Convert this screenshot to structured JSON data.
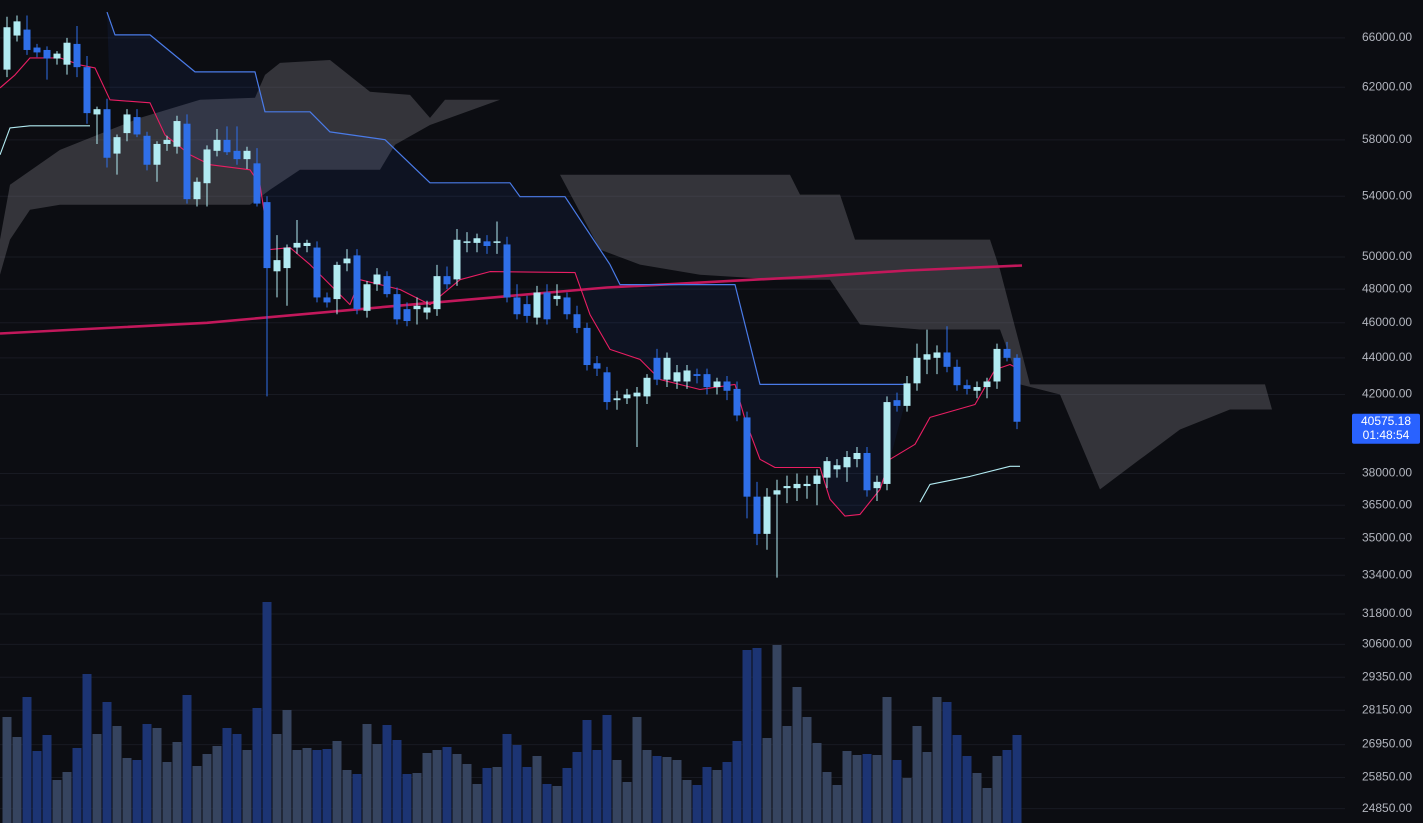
{
  "chart_data": {
    "type": "candlestick",
    "log_scale": true,
    "grid": true,
    "xlim": [
      -0.7,
      133.8
    ],
    "ylim": [
      24400,
      69250
    ],
    "yticks": [
      {
        "value": 66000,
        "label": "66000.00"
      },
      {
        "value": 62000,
        "label": "62000.00"
      },
      {
        "value": 58000,
        "label": "58000.00"
      },
      {
        "value": 54000,
        "label": "54000.00"
      },
      {
        "value": 50000,
        "label": "50000.00"
      },
      {
        "value": 48000,
        "label": "48000.00"
      },
      {
        "value": 46000,
        "label": "46000.00"
      },
      {
        "value": 44000,
        "label": "44000.00"
      },
      {
        "value": 42000,
        "label": "42000.00"
      },
      {
        "value": 38000,
        "label": "38000.00"
      },
      {
        "value": 36500,
        "label": "36500.00"
      },
      {
        "value": 35000,
        "label": "35000.00"
      },
      {
        "value": 33400,
        "label": "33400.00"
      },
      {
        "value": 31800,
        "label": "31800.00"
      },
      {
        "value": 30600,
        "label": "30600.00"
      },
      {
        "value": 29350,
        "label": "29350.00"
      },
      {
        "value": 28150,
        "label": "28150.00"
      },
      {
        "value": 26950,
        "label": "26950.00"
      },
      {
        "value": 25850,
        "label": "25850.00"
      },
      {
        "value": 24850,
        "label": "24850.00"
      }
    ],
    "up_color": "#b2ebf2",
    "down_color": "#2f6fe8",
    "volume_up_color": "#36445f",
    "volume_down_color": "#1c3473",
    "open": [
      63400,
      66200,
      66700,
      65200,
      65000,
      64300,
      63800,
      65500,
      63600,
      59900,
      60300,
      57000,
      58500,
      59700,
      58300,
      56200,
      57700,
      57500,
      59200,
      53800,
      54900,
      57200,
      58000,
      57200,
      56600,
      56300,
      53600,
      49100,
      49300,
      50600,
      50700,
      50600,
      47500,
      47400,
      49600,
      50100,
      46700,
      48300,
      48800,
      47700,
      46800,
      46800,
      46600,
      46800,
      48800,
      48600,
      50900,
      50900,
      51000,
      50900,
      50800,
      47500,
      47100,
      46300,
      47800,
      47400,
      47500,
      46500,
      45700,
      43700,
      43200,
      41700,
      41800,
      41900,
      41900,
      44000,
      42800,
      42700,
      42700,
      43100,
      43100,
      42400,
      42700,
      42300,
      40800,
      36900,
      35200,
      37000,
      37300,
      37300,
      37400,
      37500,
      37800,
      38200,
      38300,
      38700,
      39000,
      37300,
      37500,
      41700,
      41400,
      42600,
      43900,
      44000,
      44300,
      43500,
      42500,
      42200,
      42400,
      42700,
      44500,
      44000
    ],
    "high": [
      67800,
      67900,
      67900,
      65500,
      65300,
      64900,
      66000,
      67000,
      64500,
      60500,
      61100,
      58400,
      60300,
      60300,
      58600,
      57900,
      58300,
      59800,
      59900,
      55300,
      57600,
      58800,
      59000,
      59000,
      57500,
      57400,
      54000,
      51400,
      50800,
      52400,
      51100,
      51000,
      47800,
      49700,
      50500,
      50500,
      48500,
      49300,
      49100,
      48100,
      47200,
      47500,
      47300,
      49500,
      49400,
      51800,
      51600,
      51500,
      51400,
      52300,
      51300,
      48300,
      47600,
      48200,
      48300,
      48300,
      47800,
      47000,
      46000,
      44100,
      43500,
      42200,
      42300,
      42400,
      43100,
      44500,
      44300,
      43600,
      43600,
      43400,
      43400,
      42900,
      43000,
      42700,
      41100,
      37600,
      37300,
      37700,
      37900,
      38000,
      37900,
      38200,
      38800,
      38700,
      39100,
      39300,
      39300,
      37900,
      41900,
      42100,
      43000,
      44800,
      45600,
      44700,
      45800,
      43900,
      42800,
      42700,
      42900,
      44800,
      44900,
      44200
    ],
    "low": [
      62800,
      65700,
      64600,
      64400,
      62600,
      63800,
      63000,
      62800,
      59200,
      57700,
      56000,
      55500,
      57900,
      58200,
      55800,
      55000,
      57200,
      57000,
      53500,
      53300,
      53300,
      56800,
      56900,
      56200,
      55900,
      53300,
      41900,
      47500,
      47000,
      50200,
      50300,
      47200,
      46900,
      46500,
      49100,
      46500,
      46300,
      47900,
      47500,
      45900,
      45800,
      45900,
      46200,
      46400,
      48000,
      48200,
      50300,
      50300,
      50200,
      50200,
      47200,
      46200,
      46000,
      45900,
      45900,
      47000,
      46200,
      45400,
      43300,
      43000,
      41200,
      41200,
      41500,
      39300,
      41500,
      42500,
      42400,
      42300,
      42300,
      42600,
      42000,
      42000,
      41700,
      40600,
      35900,
      34700,
      34500,
      33300,
      36600,
      36700,
      36800,
      36500,
      37300,
      37800,
      37600,
      38300,
      36900,
      36700,
      37200,
      41100,
      41100,
      42200,
      43100,
      43100,
      43200,
      42200,
      42000,
      41800,
      41800,
      42300,
      43800,
      40200
    ],
    "close": [
      66900,
      67400,
      65000,
      64800,
      64300,
      64700,
      65600,
      63600,
      60000,
      60300,
      56700,
      58200,
      59900,
      58400,
      56200,
      57700,
      58000,
      59400,
      53800,
      55000,
      57300,
      58000,
      57100,
      56600,
      57200,
      53500,
      49300,
      49800,
      50600,
      50900,
      50900,
      47500,
      47200,
      49500,
      49900,
      46800,
      48300,
      48900,
      47700,
      46200,
      46100,
      47000,
      46900,
      48800,
      48300,
      51100,
      51000,
      51200,
      50700,
      51000,
      47500,
      46500,
      46400,
      47800,
      46200,
      47600,
      46500,
      45700,
      43600,
      43400,
      41600,
      41800,
      42000,
      42100,
      42900,
      42800,
      44000,
      43200,
      43300,
      43000,
      42400,
      42700,
      42200,
      40900,
      36900,
      35200,
      36900,
      37200,
      37400,
      37500,
      37500,
      37900,
      38600,
      38400,
      38800,
      39000,
      37200,
      37600,
      41600,
      41400,
      42600,
      44000,
      44200,
      44300,
      43500,
      42500,
      42300,
      42400,
      42700,
      44500,
      44000,
      40575.18
    ],
    "volume": [
      106,
      86,
      126,
      72,
      88,
      43,
      51,
      75,
      149,
      89,
      121,
      97,
      65,
      63,
      99,
      95,
      61,
      81,
      128,
      57,
      69,
      77,
      95,
      89,
      73,
      115,
      221,
      89,
      113,
      73,
      75,
      73,
      74,
      82,
      53,
      49,
      99,
      79,
      98,
      83,
      49,
      50,
      70,
      73,
      76,
      69,
      59,
      39,
      55,
      56,
      89,
      78,
      56,
      67,
      39,
      37,
      55,
      71,
      103,
      73,
      108,
      63,
      41,
      106,
      73,
      67,
      66,
      63,
      43,
      38,
      56,
      53,
      61,
      82,
      173,
      175,
      85,
      178,
      97,
      136,
      106,
      80,
      51,
      38,
      72,
      68,
      69,
      68,
      126,
      63,
      45,
      97,
      71,
      126,
      121,
      88,
      67,
      50,
      35,
      67,
      73,
      88
    ],
    "moving_average": {
      "color": "#c2185b",
      "x": [
        -0.7,
        20,
        40,
        60,
        80,
        90,
        101.5
      ],
      "values": [
        45380,
        46000,
        47050,
        48100,
        48750,
        49150,
        49460
      ]
    },
    "conversion_line": {
      "color": "#e91e63",
      "x": [
        -0.7,
        0.8,
        2.3,
        5.3,
        7.3,
        8.8,
        10.3,
        14.3,
        15.8,
        18.3,
        20.3,
        24.3,
        25.3,
        26.3,
        28.3,
        30.3,
        32.3,
        34.3,
        35.3,
        39.3,
        42.3,
        45.3,
        48.3,
        56.8,
        58.3,
        60.3,
        63.3,
        65.3,
        69.3,
        72.8,
        73.8,
        75.3,
        76.8,
        81.3,
        82.3,
        83.8,
        85.3,
        87.3,
        88.3,
        90.8,
        92.3,
        96.8,
        98.8,
        100.3,
        101.3
      ],
      "values": [
        61950,
        62980,
        64350,
        64350,
        63780,
        63540,
        61020,
        60790,
        58370,
        56910,
        56200,
        55840,
        54790,
        50470,
        50600,
        49520,
        48280,
        47070,
        48580,
        47980,
        47070,
        48580,
        49080,
        49020,
        46480,
        44470,
        43910,
        42810,
        42270,
        42540,
        40700,
        38690,
        38290,
        38290,
        36780,
        36000,
        36080,
        37240,
        38690,
        39430,
        40800,
        41470,
        43350,
        43630,
        43350
      ]
    },
    "base_line": {
      "color": "#4a7be8",
      "x": [
        10,
        10.8,
        14.3,
        18.8,
        24.8,
        25.8,
        30.3,
        32.3,
        37.8,
        42.3,
        50.3,
        51.3,
        55.8,
        60.3,
        61.3,
        72.8,
        75.3,
        90.3
      ],
      "values": [
        68200,
        66250,
        66250,
        63220,
        63220,
        60100,
        60100,
        58590,
        58010,
        54930,
        54930,
        53970,
        53970,
        49520,
        48280,
        48280,
        42540,
        42540
      ]
    },
    "lagging_span": {
      "color": "#b2ebf2",
      "x": [
        -0.7,
        0.3,
        2.3,
        8.3,
        null,
        91.3,
        92.3,
        96.3,
        100.3,
        101.3
      ],
      "values": [
        56910,
        58890,
        59040,
        59040,
        null,
        36640,
        37480,
        37860,
        38350,
        38350
      ]
    },
    "cloud": {
      "color": "#8a8a8f",
      "span_a": {
        "x": [
          -0.7,
          0.3,
          5.3,
          13.3,
          19.3,
          24.8,
          25.8,
          27.3,
          32.3,
          36.3,
          40.3,
          42.3,
          43.8,
          49.3,
          50.8,
          55.3,
          59.3,
          63.3,
          69.3,
          77.3,
          82.3,
          85.3,
          91.3,
          99.3,
          101.3,
          105.3,
          109.3,
          113.3,
          117.3,
          122.3,
          126.5
        ],
        "values": [
          51110,
          54790,
          57270,
          59640,
          61020,
          61180,
          62980,
          63940,
          64180,
          61640,
          61400,
          59640,
          61020,
          61020,
          55490,
          55490,
          50470,
          49520,
          48890,
          48580,
          48580,
          45900,
          45610,
          45610,
          42540,
          42000,
          37240,
          38690,
          40180,
          41210,
          41210
        ]
      },
      "span_b": {
        "x": [
          -0.7,
          0.3,
          2.3,
          5.3,
          24.3,
          26.3,
          29.3,
          37.3,
          38.8,
          42.3,
          49.3,
          50.8,
          78.3,
          79.3,
          83.3,
          84.8,
          98.3,
          99.3,
          102.3,
          125.8,
          126.5
        ],
        "values": [
          48890,
          51110,
          53080,
          53420,
          53420,
          54450,
          55840,
          55840,
          57640,
          59100,
          61020,
          55490,
          55490,
          54110,
          54110,
          51110,
          51110,
          49200,
          42540,
          42540,
          41210
        ]
      }
    },
    "last_price": 40575.18,
    "countdown": "01:48:54"
  }
}
